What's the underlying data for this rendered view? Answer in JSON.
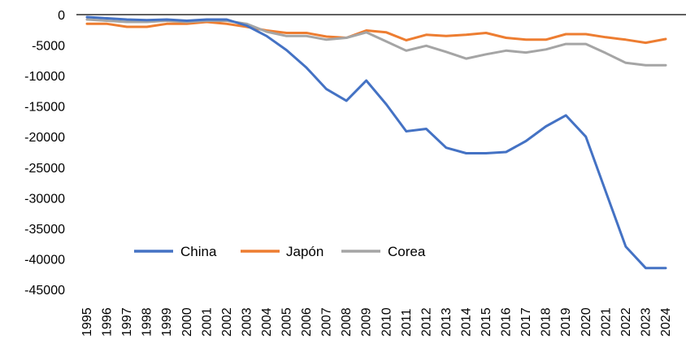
{
  "chart_data": {
    "type": "line",
    "title": "",
    "xlabel": "",
    "ylabel": "",
    "ylim": [
      -45000,
      0
    ],
    "yticks": [
      0,
      -5000,
      -10000,
      -15000,
      -20000,
      -25000,
      -30000,
      -35000,
      -40000,
      -45000
    ],
    "ytick_labels": [
      "0",
      "-5000",
      "-10000",
      "-15000",
      "-20000",
      "-25000",
      "-30000",
      "-35000",
      "-40000",
      "-45000"
    ],
    "x": [
      "1995",
      "1996",
      "1997",
      "1998",
      "1999",
      "2000",
      "2001",
      "2002",
      "2003",
      "2004",
      "2005",
      "2006",
      "2007",
      "2008",
      "2009",
      "2010",
      "2011",
      "2012",
      "2013",
      "2014",
      "2015",
      "2016",
      "2017",
      "2018",
      "2019",
      "2020",
      "2021",
      "2022",
      "2023",
      "2024"
    ],
    "grid": false,
    "legend_position": "bottom-left",
    "series": [
      {
        "name": "China",
        "color": "#4472C4",
        "values": [
          -400,
          -600,
          -800,
          -900,
          -800,
          -1000,
          -800,
          -800,
          -1800,
          -3500,
          -5800,
          -8700,
          -12200,
          -14100,
          -10800,
          -14700,
          -19100,
          -18700,
          -21800,
          -22700,
          -22700,
          -22500,
          -20700,
          -18300,
          -16500,
          -20000,
          -29000,
          -38000,
          -41500,
          -41500
        ]
      },
      {
        "name": "Japón",
        "color": "#ED7D31",
        "values": [
          -1500,
          -1500,
          -2000,
          -2000,
          -1500,
          -1500,
          -1200,
          -1500,
          -2000,
          -2600,
          -3000,
          -3000,
          -3600,
          -3800,
          -2600,
          -2900,
          -4200,
          -3300,
          -3500,
          -3300,
          -3000,
          -3800,
          -4100,
          -4100,
          -3200,
          -3200,
          -3700,
          -4100,
          -4600,
          -4000
        ]
      },
      {
        "name": "Corea",
        "color": "#A5A5A5",
        "values": [
          -800,
          -1000,
          -1200,
          -1200,
          -1000,
          -1200,
          -1000,
          -1000,
          -1500,
          -2800,
          -3500,
          -3500,
          -4100,
          -3800,
          -2900,
          -4400,
          -5900,
          -5100,
          -6100,
          -7200,
          -6500,
          -5900,
          -6200,
          -5700,
          -4800,
          -4800,
          -6300,
          -7900,
          -8300,
          -8300
        ]
      }
    ]
  }
}
